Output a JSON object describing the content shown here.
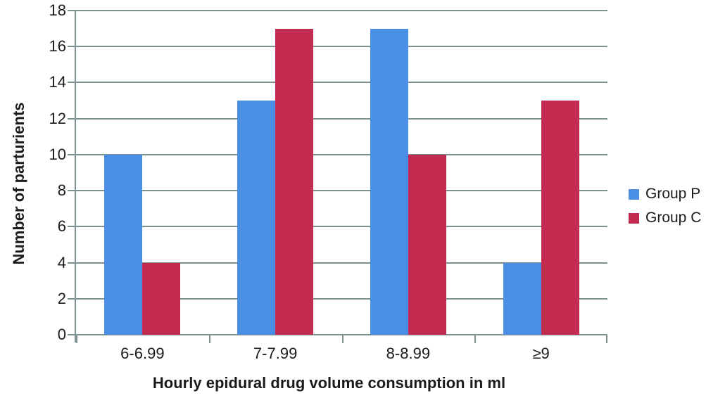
{
  "figure": {
    "background": "#ffffff"
  },
  "chart_data": {
    "type": "bar",
    "title": "",
    "categories": [
      "6-6.99",
      "7-7.99",
      "8-8.99",
      "≥9"
    ],
    "series": [
      {
        "name": "Group P",
        "color": "#4a8ee6",
        "values": [
          10,
          13,
          17,
          4
        ]
      },
      {
        "name": "Group C",
        "color": "#c32b50",
        "values": [
          4,
          17,
          10,
          13
        ]
      }
    ],
    "xlabel": "Hourly epidural drug volume consumption in ml",
    "ylabel": "Number of parturients",
    "ylim": [
      0,
      18
    ],
    "y_ticks": [
      0,
      2,
      4,
      6,
      8,
      10,
      12,
      14,
      16,
      18
    ],
    "grid": true,
    "gridline_color": "#7e9090",
    "axis_color": "#7e9090",
    "text_color": "#1b1b1b",
    "legend_position": "right"
  }
}
